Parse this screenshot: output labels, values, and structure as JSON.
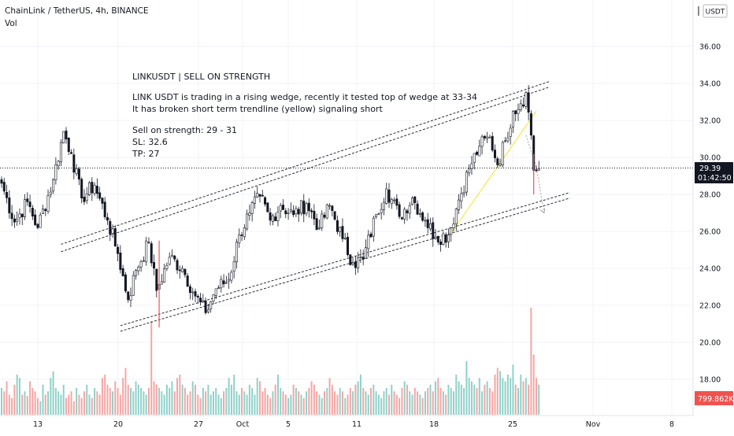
{
  "header": {
    "symbol_title": "ChainLink / TetherUS, 4h, BINANCE",
    "indicator_label": "Vol"
  },
  "currency_badge": "USDT",
  "annotation": {
    "title": "LINKUSDT | SELL ON STRENGTH",
    "lines": [
      "LINK USDT is trading in a rising wedge, recently it tested top of wedge at 33-34",
      "It has broken short term trendline (yellow) signaling short",
      "",
      "Sell on strength: 29 - 31",
      "SL: 32.6",
      "TP: 27"
    ]
  },
  "price_tag": {
    "price": "29.39",
    "countdown": "01:42:50"
  },
  "volume_tag": "799.862K",
  "colors": {
    "up": "#26a69a",
    "down": "#ef5350",
    "vol_up": "#8fd1c9",
    "vol_down": "#f4a6a4",
    "price_tag_bg": "#131722",
    "volume_tag_bg": "#ef5350",
    "trendline": "#f5e94a",
    "wedge": "#131722",
    "projection": "#9aa0a6"
  },
  "chart_data": {
    "type": "candlestick",
    "title": "",
    "y_ticks": [
      "18.00",
      "20.00",
      "22.00",
      "24.00",
      "26.00",
      "28.00",
      "30.00",
      "32.00",
      "34.00",
      "36.00"
    ],
    "x_ticks": [
      "13",
      "20",
      "27",
      "Oct",
      "5",
      "11",
      "18",
      "25",
      "Nov",
      "8"
    ],
    "ylim": [
      16.6,
      38.2
    ],
    "last_price": 29.39,
    "anchors": [
      [
        0,
        28.6
      ],
      [
        5,
        26.5
      ],
      [
        10,
        27.6
      ],
      [
        14,
        26.2
      ],
      [
        20,
        28.8
      ],
      [
        24,
        31.4
      ],
      [
        27,
        30.2
      ],
      [
        31,
        27.8
      ],
      [
        36,
        28.5
      ],
      [
        41,
        26.6
      ],
      [
        45,
        24.8
      ],
      [
        49,
        22.3
      ],
      [
        52,
        23.9
      ],
      [
        57,
        25.4
      ],
      [
        60,
        22.8
      ],
      [
        65,
        24.6
      ],
      [
        70,
        24.0
      ],
      [
        75,
        22.5
      ],
      [
        79,
        21.6
      ],
      [
        83,
        22.9
      ],
      [
        88,
        23.4
      ],
      [
        92,
        25.8
      ],
      [
        96,
        27.0
      ],
      [
        100,
        27.9
      ],
      [
        104,
        26.6
      ],
      [
        108,
        27.4
      ],
      [
        113,
        26.9
      ],
      [
        118,
        27.5
      ],
      [
        123,
        26.2
      ],
      [
        127,
        27.4
      ],
      [
        132,
        25.6
      ],
      [
        136,
        24.3
      ],
      [
        140,
        24.5
      ],
      [
        145,
        26.9
      ],
      [
        149,
        28.3
      ],
      [
        154,
        26.8
      ],
      [
        159,
        27.8
      ],
      [
        164,
        26.6
      ],
      [
        168,
        25.7
      ],
      [
        173,
        25.8
      ],
      [
        177,
        27.7
      ],
      [
        181,
        29.4
      ],
      [
        185,
        30.6
      ],
      [
        189,
        31.1
      ],
      [
        192,
        29.6
      ],
      [
        195,
        30.9
      ],
      [
        198,
        32.5
      ],
      [
        201,
        32.9
      ],
      [
        203,
        33.5
      ],
      [
        205,
        31.2
      ],
      [
        206,
        29.3
      ],
      [
        208,
        29.39
      ]
    ],
    "volumes": [
      0.4,
      0.35,
      0.5,
      0.3,
      0.25,
      0.45,
      0.6,
      0.55,
      0.3,
      0.35,
      0.28,
      0.5,
      0.4,
      0.35,
      0.25,
      0.2,
      0.45,
      0.3,
      0.35,
      0.55,
      0.65,
      0.4,
      0.35,
      0.3,
      0.45,
      0.25,
      0.3,
      0.35,
      0.2,
      0.4,
      0.3,
      0.25,
      0.35,
      0.45,
      0.3,
      0.25,
      0.4,
      0.35,
      0.3,
      0.55,
      0.6,
      0.45,
      0.4,
      0.35,
      0.5,
      0.4,
      0.3,
      0.55,
      0.7,
      0.45,
      0.4,
      0.35,
      0.5,
      0.45,
      0.4,
      0.35,
      0.3,
      0.4,
      1.4,
      0.5,
      0.45,
      0.4,
      0.35,
      0.3,
      0.45,
      0.4,
      0.5,
      0.35,
      0.55,
      0.6,
      0.45,
      0.4,
      0.3,
      0.35,
      0.5,
      0.45,
      0.3,
      0.25,
      0.4,
      0.35,
      0.45,
      0.3,
      0.35,
      0.4,
      0.3,
      0.25,
      0.35,
      0.4,
      0.55,
      0.45,
      0.6,
      0.35,
      0.3,
      0.4,
      0.35,
      0.3,
      0.45,
      0.4,
      0.3,
      0.55,
      0.5,
      0.35,
      0.4,
      0.3,
      0.25,
      0.35,
      0.45,
      0.6,
      0.4,
      0.35,
      0.3,
      0.25,
      0.3,
      0.45,
      0.4,
      0.35,
      0.3,
      0.25,
      0.35,
      0.4,
      0.5,
      0.45,
      0.35,
      0.3,
      0.25,
      0.35,
      0.4,
      0.55,
      0.45,
      0.35,
      0.3,
      0.4,
      0.35,
      0.25,
      0.3,
      0.4,
      0.35,
      0.45,
      0.5,
      0.6,
      0.4,
      0.35,
      0.3,
      0.4,
      0.45,
      0.35,
      0.3,
      0.25,
      0.35,
      0.4,
      0.3,
      0.45,
      0.35,
      0.3,
      0.25,
      0.4,
      0.5,
      0.45,
      0.35,
      0.3,
      0.4,
      0.35,
      0.3,
      0.25,
      0.35,
      0.4,
      0.45,
      0.35,
      0.5,
      0.55,
      0.4,
      0.35,
      0.3,
      0.45,
      0.4,
      0.35,
      0.6,
      0.5,
      0.45,
      0.4,
      0.8,
      0.55,
      0.5,
      0.45,
      0.4,
      0.55,
      0.35,
      0.45,
      0.5,
      0.4,
      0.35,
      0.6,
      0.7,
      0.65,
      0.55,
      0.5,
      0.6,
      0.55,
      0.75,
      0.45,
      0.4,
      0.6,
      0.5,
      0.55,
      0.45,
      1.6,
      0.9,
      0.55,
      0.45
    ],
    "overlays": {
      "wedge_upper": [
        [
          23,
          25.3
        ],
        [
          212,
          34.1
        ]
      ],
      "wedge_upper_inner": [
        [
          23,
          24.9
        ],
        [
          212,
          33.8
        ]
      ],
      "wedge_lower": [
        [
          46,
          20.9
        ],
        [
          220,
          28.1
        ]
      ],
      "wedge_lower_inner": [
        [
          46,
          20.6
        ],
        [
          220,
          27.8
        ]
      ],
      "yellow_trendline": [
        [
          171,
          25.3
        ],
        [
          207,
          32.5
        ]
      ],
      "projection": [
        [
          203,
          31.2
        ],
        [
          207,
          29.5
        ],
        [
          210,
          27.0
        ]
      ]
    }
  }
}
